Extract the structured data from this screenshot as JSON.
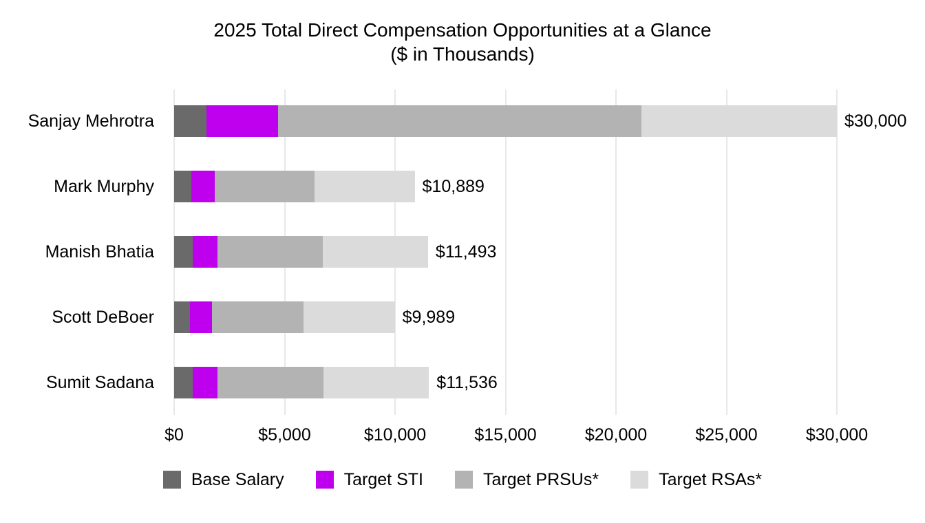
{
  "title": {
    "line1": "2025 Total Direct Compensation Opportunities at a Glance",
    "line2": "($ in Thousands)"
  },
  "colors": {
    "base_salary": "#6a6a6a",
    "target_sti": "#be00ef",
    "target_prsus": "#b3b3b3",
    "target_rsas": "#dbdbdb",
    "gridline": "#e8e8e8",
    "text": "#000000",
    "background": "#ffffff"
  },
  "chart_data": {
    "type": "bar",
    "orientation": "horizontal",
    "stacked": true,
    "title": "2025 Total Direct Compensation Opportunities at a Glance ($ in Thousands)",
    "unit": "$ in Thousands",
    "grid": "vertical",
    "legend_position": "bottom",
    "categories": [
      "Sanjay Mehrotra",
      "Mark Murphy",
      "Manish Bhatia",
      "Scott DeBoer",
      "Sumit Sadana"
    ],
    "series": [
      {
        "name": "Base Salary",
        "color": "#6a6a6a",
        "values": [
          1450,
          775,
          830,
          725,
          830
        ]
      },
      {
        "name": "Target STI",
        "color": "#be00ef",
        "values": [
          3262,
          1066,
          1141,
          997,
          1141
        ]
      },
      {
        "name": "Target PRSUs*",
        "color": "#b3b3b3",
        "values": [
          16437,
          4524,
          4761,
          4134,
          4783
        ]
      },
      {
        "name": "Target RSAs*",
        "color": "#dbdbdb",
        "values": [
          8851,
          4524,
          4761,
          4133,
          4782
        ]
      }
    ],
    "totals": [
      30000,
      10889,
      11493,
      9989,
      11536
    ],
    "total_labels": [
      "$30,000",
      "$10,889",
      "$11,493",
      "$9,989",
      "$11,536"
    ],
    "x_axis": {
      "min": 0,
      "max": 30000,
      "tick_values": [
        0,
        5000,
        10000,
        15000,
        20000,
        25000,
        30000
      ],
      "tick_labels": [
        "$0",
        "$5,000",
        "$10,000",
        "$15,000",
        "$20,000",
        "$25,000",
        "$30,000"
      ]
    }
  }
}
